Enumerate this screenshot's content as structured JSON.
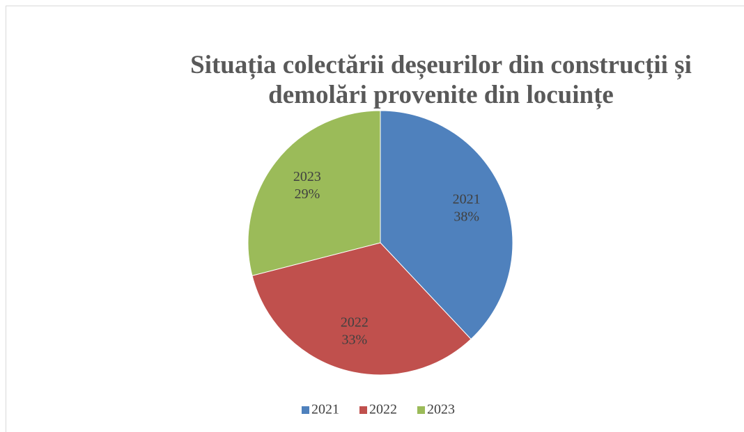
{
  "chart_data": {
    "type": "pie",
    "title": "Situația colectării deșeurilor din construcții și demolări provenite din locuințe",
    "categories": [
      "2021",
      "2022",
      "2023"
    ],
    "values": [
      38,
      33,
      29
    ],
    "value_labels": [
      "38%",
      "33%",
      "29%"
    ],
    "colors": [
      "#4f81bd",
      "#c0504d",
      "#9bbb59"
    ],
    "legend": "bottom"
  }
}
